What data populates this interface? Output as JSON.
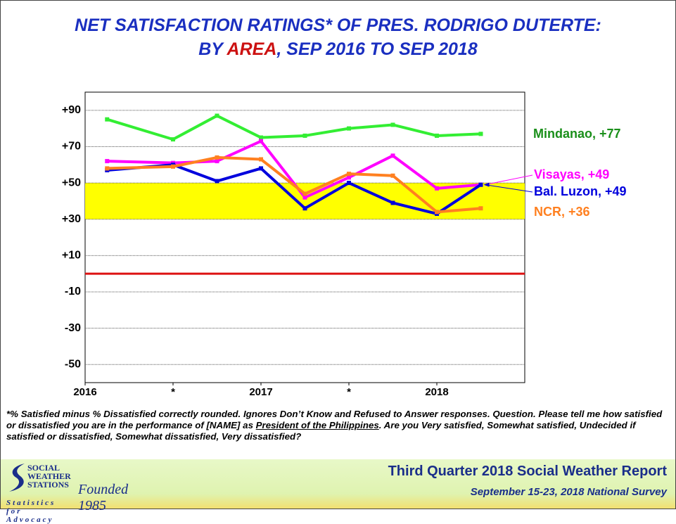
{
  "chart_data": {
    "type": "line",
    "title": [
      "NET SATISFACTION RATINGS* OF PRES. RODRIGO DUTERTE:",
      "BY ",
      "AREA",
      ", SEP 2016 TO SEP 2018"
    ],
    "x": [
      0.5,
      2,
      3,
      4,
      5,
      6,
      7,
      8,
      9
    ],
    "xlim": [
      0,
      10
    ],
    "xticks": [
      {
        "value": 0,
        "label": "2016"
      },
      {
        "value": 2,
        "label": "*"
      },
      {
        "value": 4,
        "label": "2017"
      },
      {
        "value": 6,
        "label": "*"
      },
      {
        "value": 8,
        "label": "2018"
      }
    ],
    "ylim": [
      -60,
      100
    ],
    "yticks": [
      {
        "value": 90,
        "label": "+90"
      },
      {
        "value": 70,
        "label": "+70"
      },
      {
        "value": 50,
        "label": "+50"
      },
      {
        "value": 30,
        "label": "+30"
      },
      {
        "value": 10,
        "label": "+10"
      },
      -10,
      -30,
      -50
    ],
    "grid": true,
    "band": [
      30,
      50
    ],
    "band_color": "#ffff00",
    "reference_line": 0,
    "reference_color": "#dd1111",
    "series": [
      {
        "name": "Mindanao, +77",
        "color": "#33ee33",
        "label_color": "#1a8f1a",
        "values": [
          85,
          74,
          87,
          75,
          76,
          80,
          82,
          76,
          77
        ]
      },
      {
        "name": "Visayas, +49",
        "color": "#ff00ff",
        "label_color": "#ff00ff",
        "values": [
          62,
          61,
          62,
          73,
          42,
          53,
          65,
          47,
          49
        ]
      },
      {
        "name": "Bal. Luzon, +49",
        "color": "#0000dd",
        "label_color": "#0000dd",
        "values": [
          57,
          60,
          51,
          58,
          36,
          50,
          39,
          33,
          49
        ]
      },
      {
        "name": "NCR, +36",
        "color": "#ff8020",
        "label_color": "#ff8020",
        "values": [
          58,
          59,
          64,
          63,
          44,
          55,
          54,
          34,
          36
        ]
      }
    ]
  },
  "footnote": [
    "*% Satisfied minus % Dissatisfied correctly rounded. Ignores Don’t Know and Refused to Answer responses. Question. Please tell me how satisfied or dissatisfied you are in the performance of [NAME] as ",
    "President of the Philippines",
    ". Are you Very satisfied, Somewhat satisfied, Undecided if satisfied or dissatisfied, Somewhat dissatisfied, Very dissatisfied?"
  ],
  "footer": {
    "report": "Third Quarter 2018 Social Weather Report",
    "survey": "September 15-23, 2018 National Survey",
    "logo": [
      "SOCIAL",
      "WEATHER",
      "STATIONS"
    ],
    "founded": "Founded 1985",
    "motto": "Statistics for Advocacy"
  }
}
